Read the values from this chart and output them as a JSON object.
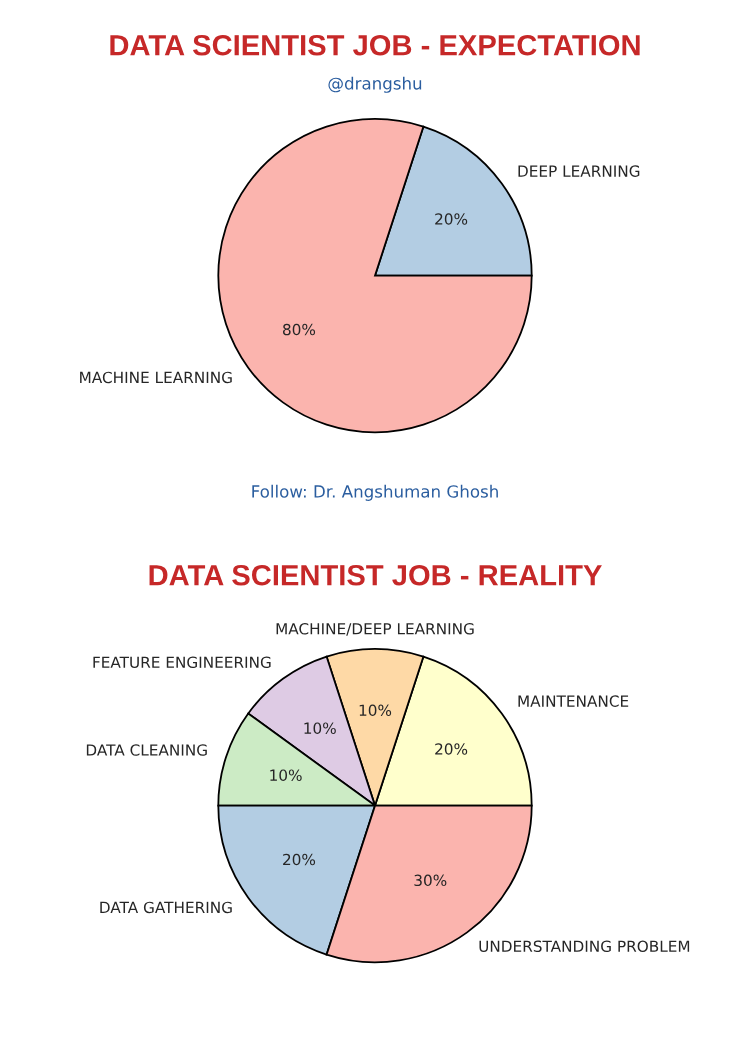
{
  "chart_data": [
    {
      "type": "pie",
      "title": "DATA SCIENTIST JOB - EXPECTATION",
      "subtitle": "@drangshu",
      "categories": [
        "DEEP LEARNING",
        "MACHINE LEARNING"
      ],
      "values": [
        20,
        80
      ],
      "colors": [
        "#b3cde3",
        "#fbb4ae"
      ],
      "value_labels": [
        "20%",
        "80%"
      ],
      "annotations": [
        "Follow: Dr. Angshuman Ghosh"
      ]
    },
    {
      "type": "pie",
      "title": "DATA SCIENTIST JOB - REALITY",
      "categories": [
        "MAINTENANCE",
        "MACHINE/DEEP LEARNING",
        "FEATURE ENGINEERING",
        "DATA CLEANING",
        "DATA GATHERING",
        "UNDERSTANDING PROBLEM"
      ],
      "values": [
        20,
        10,
        10,
        10,
        20,
        30
      ],
      "colors": [
        "#ffffcc",
        "#fed9a6",
        "#decbe4",
        "#ccebc5",
        "#b3cde3",
        "#fbb4ae"
      ],
      "value_labels": [
        "20%",
        "10%",
        "10%",
        "10%",
        "20%",
        "30%"
      ]
    }
  ]
}
